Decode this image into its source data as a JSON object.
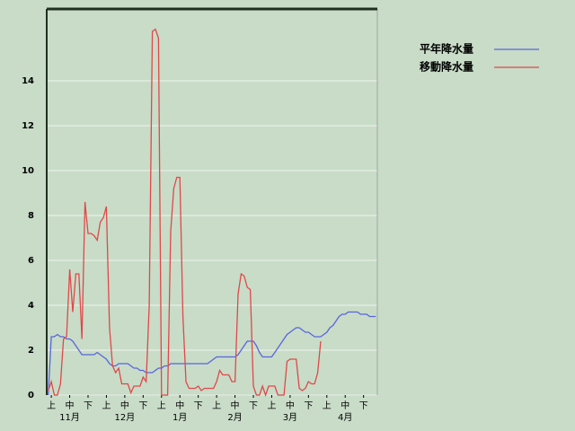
{
  "chart_data": {
    "type": "line",
    "ylim": [
      0,
      17.2
    ],
    "yticks": [
      0,
      2,
      4,
      6,
      8,
      10,
      12,
      14
    ],
    "grid": true,
    "legend": "top-right",
    "categories": [
      null,
      "上",
      null,
      null,
      null,
      null,
      null,
      "中",
      null,
      null,
      null,
      null,
      null,
      "下",
      null,
      null,
      null,
      null,
      null,
      "上",
      null,
      null,
      null,
      null,
      null,
      "中",
      null,
      null,
      null,
      null,
      null,
      "下",
      null,
      null,
      null,
      null,
      null,
      "上",
      null,
      null,
      null,
      null,
      null,
      "中",
      null,
      null,
      null,
      null,
      null,
      "下",
      null,
      null,
      null,
      null,
      null,
      "上",
      null,
      null,
      null,
      null,
      null,
      "中",
      null,
      null,
      null,
      null,
      null,
      "下",
      null,
      null,
      null,
      null,
      null,
      "上",
      null,
      null,
      null,
      null,
      null,
      "中",
      null,
      null,
      null,
      null,
      null,
      "下",
      null,
      null,
      null,
      null,
      null,
      "上",
      null,
      null,
      null,
      null,
      null,
      "中",
      null,
      null,
      null,
      null,
      null,
      "下",
      null,
      null,
      null,
      null
    ],
    "month_labels": [
      null,
      null,
      null,
      null,
      null,
      null,
      null,
      "11月",
      null,
      null,
      null,
      null,
      null,
      null,
      null,
      null,
      null,
      null,
      null,
      null,
      null,
      null,
      null,
      null,
      null,
      "12月",
      null,
      null,
      null,
      null,
      null,
      null,
      null,
      null,
      null,
      null,
      null,
      null,
      null,
      null,
      null,
      null,
      null,
      "1月",
      null,
      null,
      null,
      null,
      null,
      null,
      null,
      null,
      null,
      null,
      null,
      null,
      null,
      null,
      null,
      null,
      null,
      "2月",
      null,
      null,
      null,
      null,
      null,
      null,
      null,
      null,
      null,
      null,
      null,
      null,
      null,
      null,
      null,
      null,
      null,
      "3月",
      null,
      null,
      null,
      null,
      null,
      null,
      null,
      null,
      null,
      null,
      null,
      null,
      null,
      null,
      null,
      null,
      null,
      "4月",
      null,
      null,
      null,
      null,
      null,
      null,
      null,
      null,
      null,
      null
    ],
    "series": [
      {
        "name": "平年降水量",
        "color": "#5a64dc",
        "values": [
          0,
          2.6,
          2.6,
          2.7,
          2.6,
          2.6,
          2.5,
          2.5,
          2.4,
          2.2,
          2.0,
          1.8,
          1.8,
          1.8,
          1.8,
          1.8,
          1.9,
          1.8,
          1.7,
          1.6,
          1.4,
          1.3,
          1.3,
          1.4,
          1.4,
          1.4,
          1.4,
          1.3,
          1.2,
          1.2,
          1.1,
          1.1,
          1.0,
          1.0,
          1.0,
          1.1,
          1.2,
          1.2,
          1.3,
          1.3,
          1.4,
          1.4,
          1.4,
          1.4,
          1.4,
          1.4,
          1.4,
          1.4,
          1.4,
          1.4,
          1.4,
          1.4,
          1.4,
          1.5,
          1.6,
          1.7,
          1.7,
          1.7,
          1.7,
          1.7,
          1.7,
          1.7,
          1.8,
          2.0,
          2.2,
          2.4,
          2.4,
          2.4,
          2.2,
          1.9,
          1.7,
          1.7,
          1.7,
          1.7,
          1.9,
          2.1,
          2.3,
          2.5,
          2.7,
          2.8,
          2.9,
          3.0,
          3.0,
          2.9,
          2.8,
          2.8,
          2.7,
          2.6,
          2.6,
          2.6,
          2.7,
          2.8,
          3.0,
          3.1,
          3.3,
          3.5,
          3.6,
          3.6,
          3.7,
          3.7,
          3.7,
          3.7,
          3.6,
          3.6,
          3.6,
          3.5,
          3.5,
          3.5
        ]
      },
      {
        "name": "移動降水量",
        "color": "#e04848",
        "values": [
          0.2,
          0.6,
          0,
          0,
          0.5,
          2.5,
          2.6,
          5.6,
          3.7,
          5.4,
          5.4,
          2.5,
          8.6,
          7.2,
          7.2,
          7.1,
          6.9,
          7.7,
          7.9,
          8.4,
          3.0,
          1.3,
          1.0,
          1.2,
          0.5,
          0.5,
          0.5,
          0.1,
          0.4,
          0.4,
          0.4,
          0.8,
          0.6,
          4.0,
          16.2,
          16.3,
          15.9,
          0,
          0,
          0,
          7.3,
          9.2,
          9.7,
          9.7,
          3.5,
          0.6,
          0.3,
          0.3,
          0.3,
          0.4,
          0.2,
          0.3,
          0.3,
          0.3,
          0.3,
          0.6,
          1.1,
          0.9,
          0.9,
          0.9,
          0.6,
          0.6,
          4.5,
          5.4,
          5.3,
          4.8,
          4.7,
          0.4,
          0,
          0,
          0.4,
          0,
          0.4,
          0.4,
          0.4,
          0,
          0,
          0,
          1.5,
          1.6,
          1.6,
          1.6,
          0.3,
          0.2,
          0.3,
          0.6,
          0.5,
          0.5,
          1.0,
          2.4,
          null,
          null,
          null,
          null,
          null,
          null,
          null,
          null,
          null,
          null,
          null,
          null,
          null,
          null,
          null,
          null,
          null,
          null
        ]
      }
    ]
  }
}
